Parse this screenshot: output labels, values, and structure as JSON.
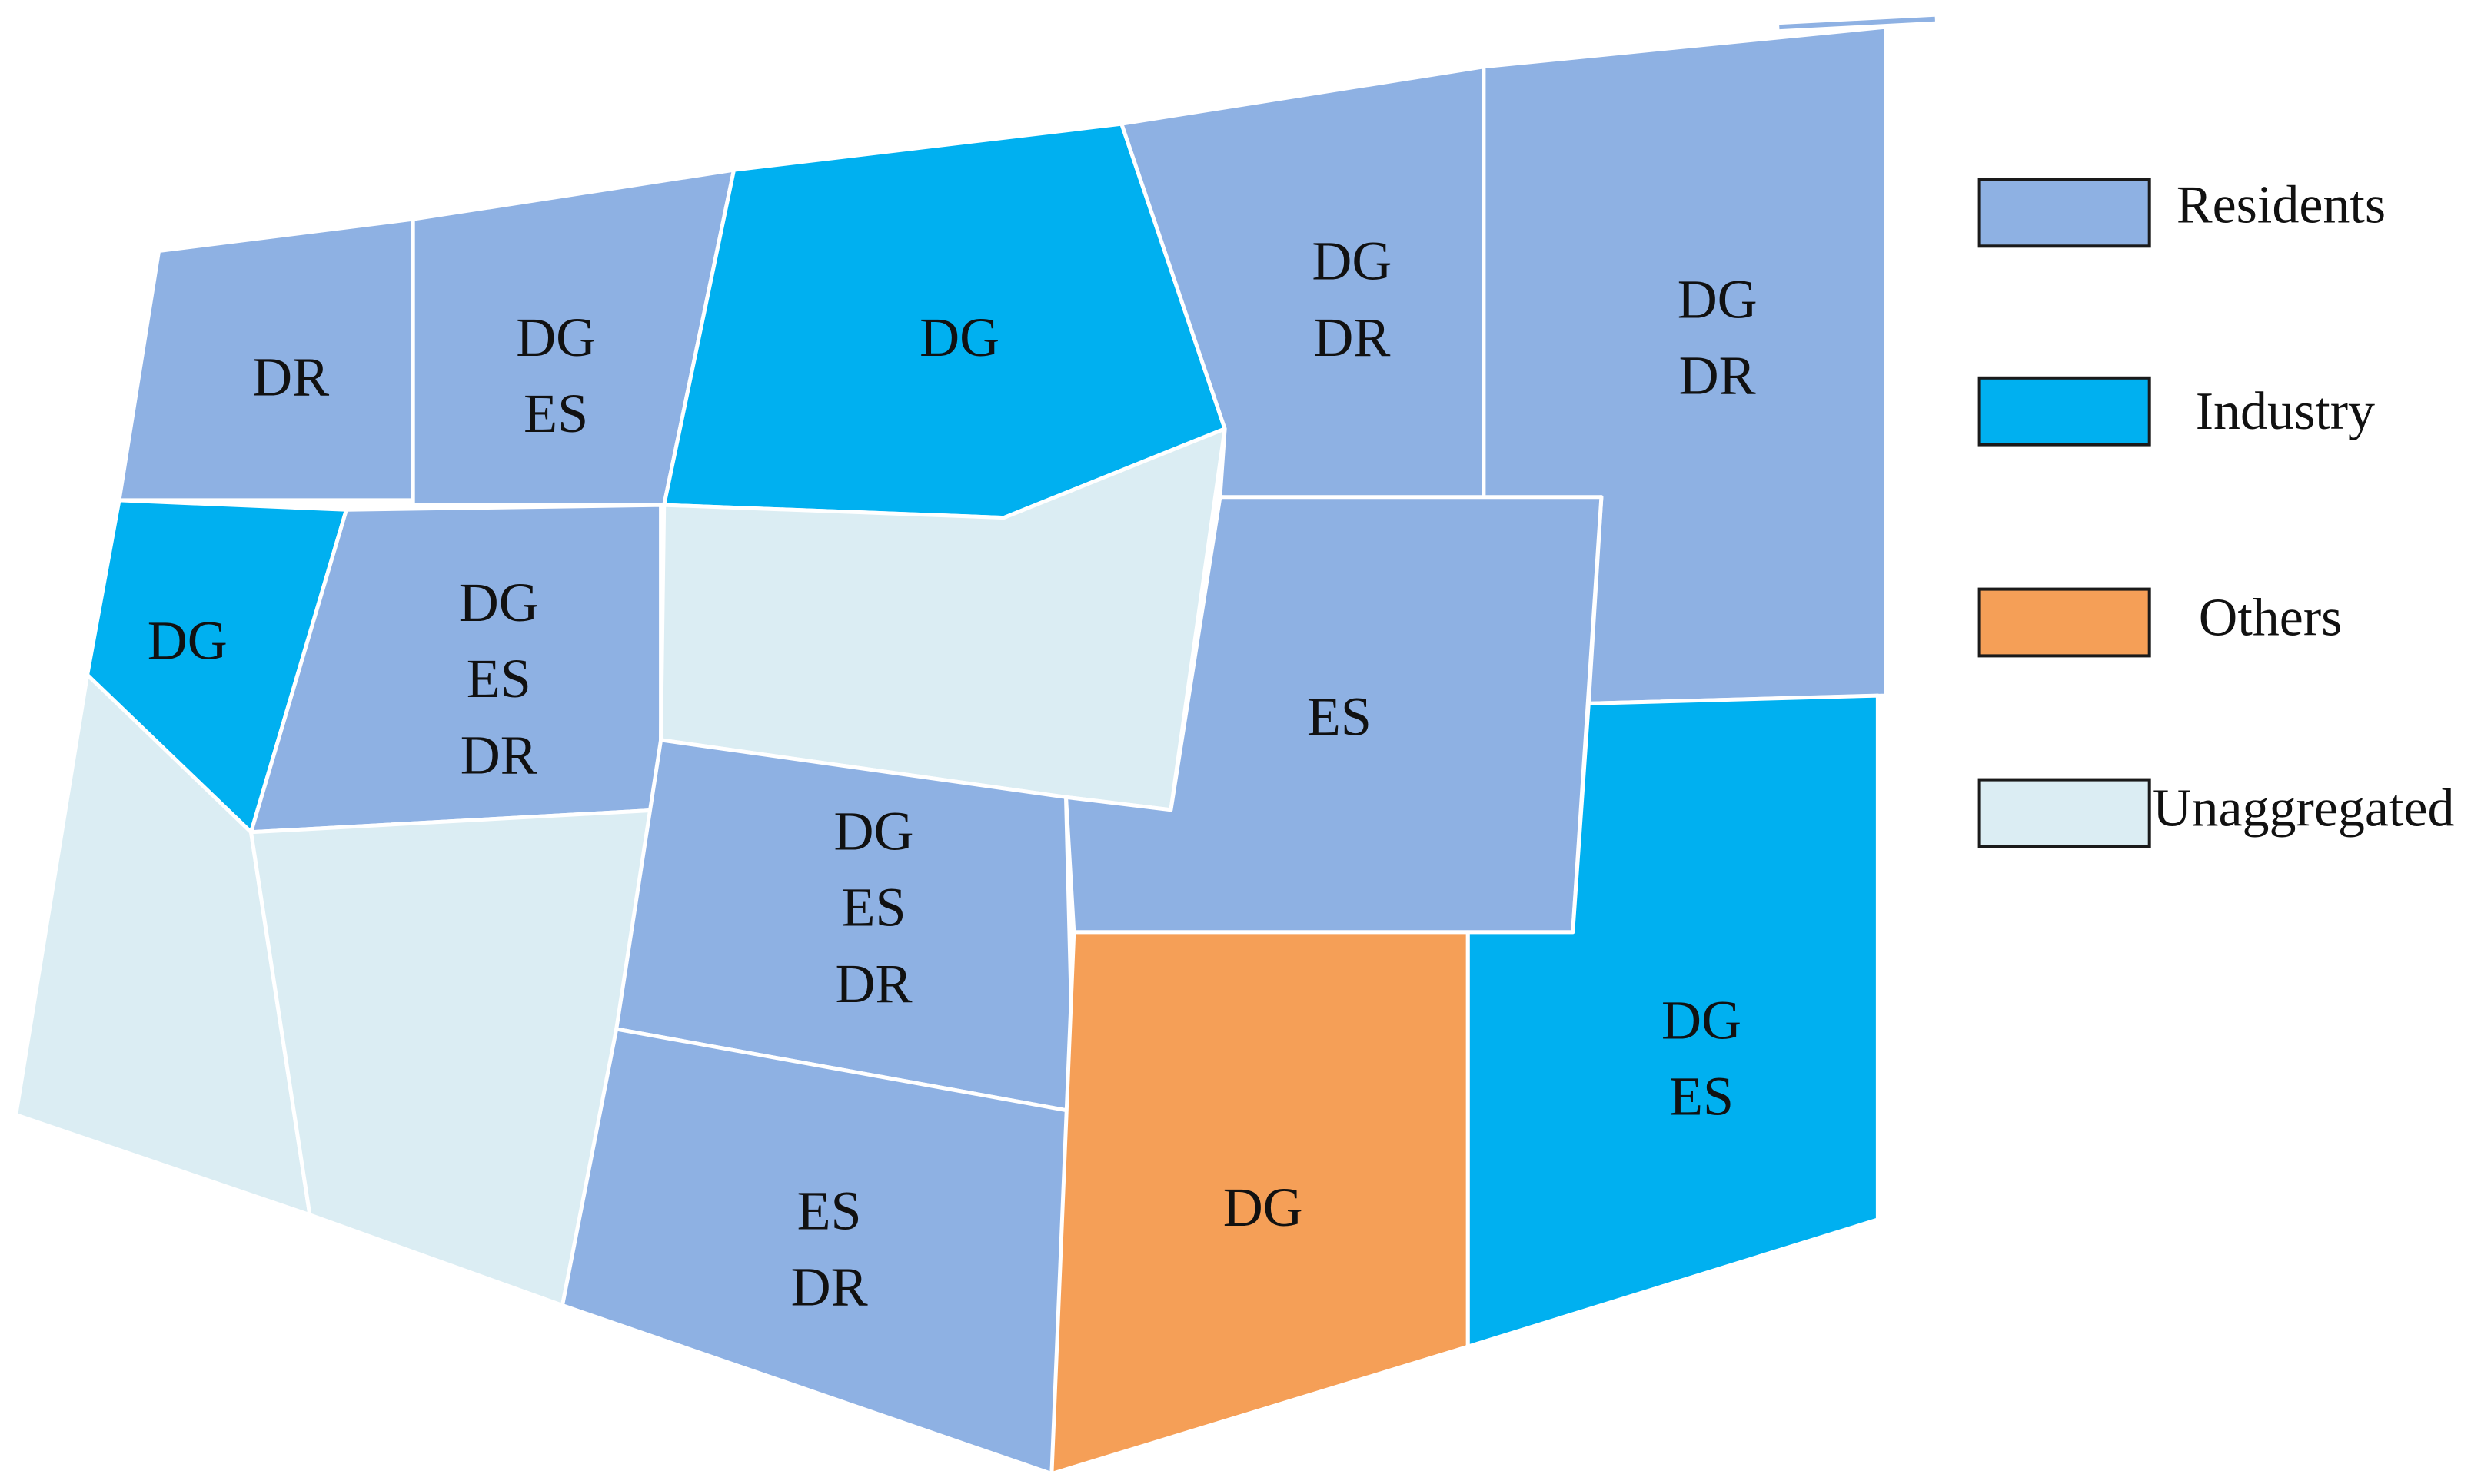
{
  "colors": {
    "residents": "#8eb1e3",
    "industry": "#00b0f0",
    "others": "#f59f57",
    "unaggregated": "#dbedf3"
  },
  "legend": [
    {
      "key": "residents",
      "label": "Residents"
    },
    {
      "key": "industry",
      "label": "Industry"
    },
    {
      "key": "others",
      "label": "Others"
    },
    {
      "key": "unaggregated",
      "label": "Unaggregated"
    }
  ],
  "regions": [
    {
      "name": "region-1",
      "category": "residents",
      "labels": [
        "DR"
      ]
    },
    {
      "name": "region-2",
      "category": "residents",
      "labels": [
        "DG",
        "ES"
      ]
    },
    {
      "name": "region-3",
      "category": "industry",
      "labels": [
        "DG"
      ]
    },
    {
      "name": "region-4",
      "category": "residents",
      "labels": [
        "DG",
        "DR"
      ]
    },
    {
      "name": "region-5",
      "category": "residents",
      "labels": [
        "DG",
        "DR"
      ]
    },
    {
      "name": "region-6",
      "category": "industry",
      "labels": [
        "DG"
      ]
    },
    {
      "name": "region-7",
      "category": "residents",
      "labels": [
        "DG",
        "ES",
        "DR"
      ]
    },
    {
      "name": "region-8",
      "category": "unaggregated",
      "labels": []
    },
    {
      "name": "region-9",
      "category": "residents",
      "labels": [
        "ES"
      ]
    },
    {
      "name": "region-10",
      "category": "unaggregated",
      "labels": []
    },
    {
      "name": "region-11",
      "category": "unaggregated",
      "labels": []
    },
    {
      "name": "region-12",
      "category": "residents",
      "labels": [
        "DG",
        "ES",
        "DR"
      ]
    },
    {
      "name": "region-13",
      "category": "residents",
      "labels": [
        "ES",
        "DR"
      ]
    },
    {
      "name": "region-14",
      "category": "others",
      "labels": [
        "DG"
      ]
    },
    {
      "name": "region-15",
      "category": "industry",
      "labels": [
        "DG",
        "ES"
      ]
    }
  ]
}
